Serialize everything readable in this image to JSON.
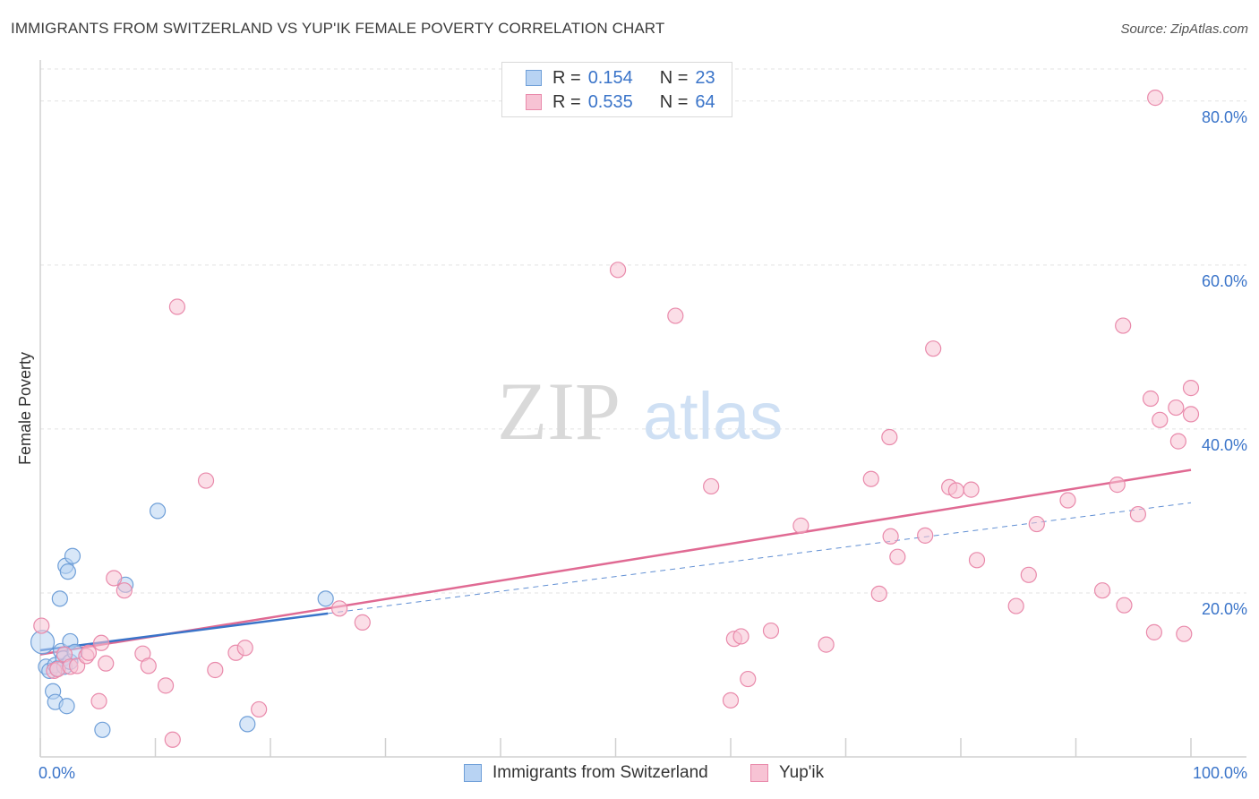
{
  "header": {
    "title": "IMMIGRANTS FROM SWITZERLAND VS YUP'IK FEMALE POVERTY CORRELATION CHART",
    "source": "Source: ZipAtlas.com"
  },
  "legend": {
    "series1": {
      "r_label": "R =",
      "r_value": "0.154",
      "n_label": "N =",
      "n_value": "23"
    },
    "series2": {
      "r_label": "R =",
      "r_value": "0.535",
      "n_label": "N =",
      "n_value": "64"
    }
  },
  "colors": {
    "blue_fill": "#b8d3f3",
    "blue_stroke": "#6f9fd8",
    "blue_line": "#3a74c9",
    "pink_fill": "#f7c3d4",
    "pink_stroke": "#e98aab",
    "pink_line": "#e06a93",
    "axis_label": "#3a74c9",
    "grid": "#e3e3e3"
  },
  "watermark": {
    "zip": "ZIP",
    "atlas": "atlas"
  },
  "chart_data": {
    "type": "scatter",
    "title": "IMMIGRANTS FROM SWITZERLAND VS YUP'IK FEMALE POVERTY CORRELATION CHART",
    "xlabel": "",
    "ylabel": "Female Poverty",
    "xlim": [
      0,
      100
    ],
    "ylim": [
      0,
      85
    ],
    "x_tick_labels": [
      "0.0%",
      "100.0%"
    ],
    "y_ticks": [
      20,
      40,
      60,
      80
    ],
    "y_tick_labels": [
      "20.0%",
      "40.0%",
      "60.0%",
      "80.0%"
    ],
    "grid": true,
    "legend_position": "top-center",
    "series": [
      {
        "name": "Immigrants from Switzerland",
        "color": "blue",
        "points": [
          {
            "x": 0.2,
            "y": 14.0,
            "big": true
          },
          {
            "x": 0.5,
            "y": 11.0
          },
          {
            "x": 0.8,
            "y": 10.5
          },
          {
            "x": 1.1,
            "y": 8.0
          },
          {
            "x": 1.3,
            "y": 11.2
          },
          {
            "x": 1.5,
            "y": 10.8
          },
          {
            "x": 1.3,
            "y": 6.7
          },
          {
            "x": 1.7,
            "y": 19.3
          },
          {
            "x": 1.8,
            "y": 12.9
          },
          {
            "x": 2.0,
            "y": 12.0
          },
          {
            "x": 2.1,
            "y": 11.0
          },
          {
            "x": 2.2,
            "y": 23.3
          },
          {
            "x": 2.3,
            "y": 6.2
          },
          {
            "x": 2.4,
            "y": 22.6
          },
          {
            "x": 2.6,
            "y": 11.6
          },
          {
            "x": 2.6,
            "y": 14.1
          },
          {
            "x": 2.8,
            "y": 24.5
          },
          {
            "x": 3.0,
            "y": 12.8
          },
          {
            "x": 5.4,
            "y": 3.3
          },
          {
            "x": 7.4,
            "y": 21.0
          },
          {
            "x": 10.2,
            "y": 30.0
          },
          {
            "x": 18.0,
            "y": 4.0
          },
          {
            "x": 24.8,
            "y": 19.3
          }
        ],
        "trend": {
          "x1": 0,
          "y1": 13.0,
          "x2": 25,
          "y2": 17.5,
          "dashed_to_x": 100,
          "dashed_to_y": 31.0
        }
      },
      {
        "name": "Yup'ik",
        "color": "pink",
        "points": [
          {
            "x": 0.1,
            "y": 16.0
          },
          {
            "x": 1.2,
            "y": 10.5
          },
          {
            "x": 1.5,
            "y": 10.7
          },
          {
            "x": 2.1,
            "y": 12.5
          },
          {
            "x": 2.6,
            "y": 11.0
          },
          {
            "x": 3.2,
            "y": 11.1
          },
          {
            "x": 4.0,
            "y": 12.3
          },
          {
            "x": 4.2,
            "y": 12.7
          },
          {
            "x": 5.1,
            "y": 6.8
          },
          {
            "x": 5.3,
            "y": 13.9
          },
          {
            "x": 5.7,
            "y": 11.4
          },
          {
            "x": 6.4,
            "y": 21.8
          },
          {
            "x": 7.3,
            "y": 20.3
          },
          {
            "x": 8.9,
            "y": 12.6
          },
          {
            "x": 9.4,
            "y": 11.1
          },
          {
            "x": 10.9,
            "y": 8.7
          },
          {
            "x": 11.5,
            "y": 2.1
          },
          {
            "x": 11.9,
            "y": 54.9
          },
          {
            "x": 14.4,
            "y": 33.7
          },
          {
            "x": 15.2,
            "y": 10.6
          },
          {
            "x": 17.0,
            "y": 12.7
          },
          {
            "x": 17.8,
            "y": 13.3
          },
          {
            "x": 19.0,
            "y": 5.8
          },
          {
            "x": 26.0,
            "y": 18.1
          },
          {
            "x": 28.0,
            "y": 16.4
          },
          {
            "x": 50.2,
            "y": 59.4
          },
          {
            "x": 55.2,
            "y": 53.8
          },
          {
            "x": 58.3,
            "y": 33.0
          },
          {
            "x": 60.0,
            "y": 6.9
          },
          {
            "x": 60.3,
            "y": 14.4
          },
          {
            "x": 60.9,
            "y": 14.7
          },
          {
            "x": 61.5,
            "y": 9.5
          },
          {
            "x": 63.5,
            "y": 15.4
          },
          {
            "x": 66.1,
            "y": 28.2
          },
          {
            "x": 68.3,
            "y": 13.7
          },
          {
            "x": 72.2,
            "y": 33.9
          },
          {
            "x": 72.9,
            "y": 19.9
          },
          {
            "x": 73.8,
            "y": 39.0
          },
          {
            "x": 73.9,
            "y": 26.9
          },
          {
            "x": 74.5,
            "y": 24.4
          },
          {
            "x": 76.9,
            "y": 27.0
          },
          {
            "x": 77.6,
            "y": 49.8
          },
          {
            "x": 79.0,
            "y": 32.9
          },
          {
            "x": 79.6,
            "y": 32.5
          },
          {
            "x": 80.9,
            "y": 32.6
          },
          {
            "x": 81.4,
            "y": 24.0
          },
          {
            "x": 84.8,
            "y": 18.4
          },
          {
            "x": 85.9,
            "y": 22.2
          },
          {
            "x": 86.6,
            "y": 28.4
          },
          {
            "x": 89.3,
            "y": 31.3
          },
          {
            "x": 92.3,
            "y": 20.3
          },
          {
            "x": 93.6,
            "y": 33.2
          },
          {
            "x": 94.1,
            "y": 52.6
          },
          {
            "x": 94.2,
            "y": 18.5
          },
          {
            "x": 95.4,
            "y": 29.6
          },
          {
            "x": 96.5,
            "y": 43.7
          },
          {
            "x": 96.8,
            "y": 15.2
          },
          {
            "x": 96.9,
            "y": 80.4
          },
          {
            "x": 97.3,
            "y": 41.1
          },
          {
            "x": 98.7,
            "y": 42.6
          },
          {
            "x": 98.9,
            "y": 38.5
          },
          {
            "x": 99.4,
            "y": 15.0
          },
          {
            "x": 100.0,
            "y": 41.8
          },
          {
            "x": 100.0,
            "y": 45.0
          }
        ],
        "trend": {
          "x1": 0,
          "y1": 12.5,
          "x2": 100,
          "y2": 35.0
        }
      }
    ]
  },
  "bottom_legend": {
    "item1": "Immigrants from Switzerland",
    "item2": "Yup'ik"
  }
}
